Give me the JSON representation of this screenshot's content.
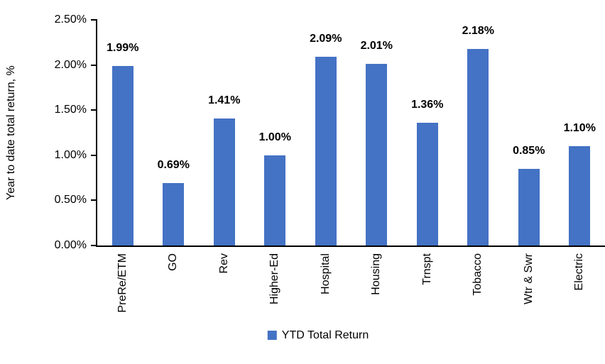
{
  "chart_data": {
    "type": "bar",
    "categories": [
      "PreRe/ETM",
      "GO",
      "Rev",
      "Higher-Ed",
      "Hospital",
      "Housing",
      "Trnspt",
      "Tobacco",
      "Wtr & Swr",
      "Electric"
    ],
    "values": [
      1.99,
      0.69,
      1.41,
      1.0,
      2.09,
      2.01,
      1.36,
      2.18,
      0.85,
      1.1
    ],
    "data_labels": [
      "1.99%",
      "0.69%",
      "1.41%",
      "1.00%",
      "2.09%",
      "2.01%",
      "1.36%",
      "2.18%",
      "0.85%",
      "1.10%"
    ],
    "ylabel": "Year to date total return, %",
    "ylim": [
      0,
      2.5
    ],
    "ytick_step": 0.5,
    "ytick_labels": [
      "0.00%",
      "0.50%",
      "1.00%",
      "1.50%",
      "2.00%",
      "2.50%"
    ],
    "grid": false,
    "bar_color": "#4472C4",
    "legend_position": "bottom",
    "legend": [
      {
        "label": "YTD Total Return",
        "color": "#4472C4"
      }
    ]
  }
}
